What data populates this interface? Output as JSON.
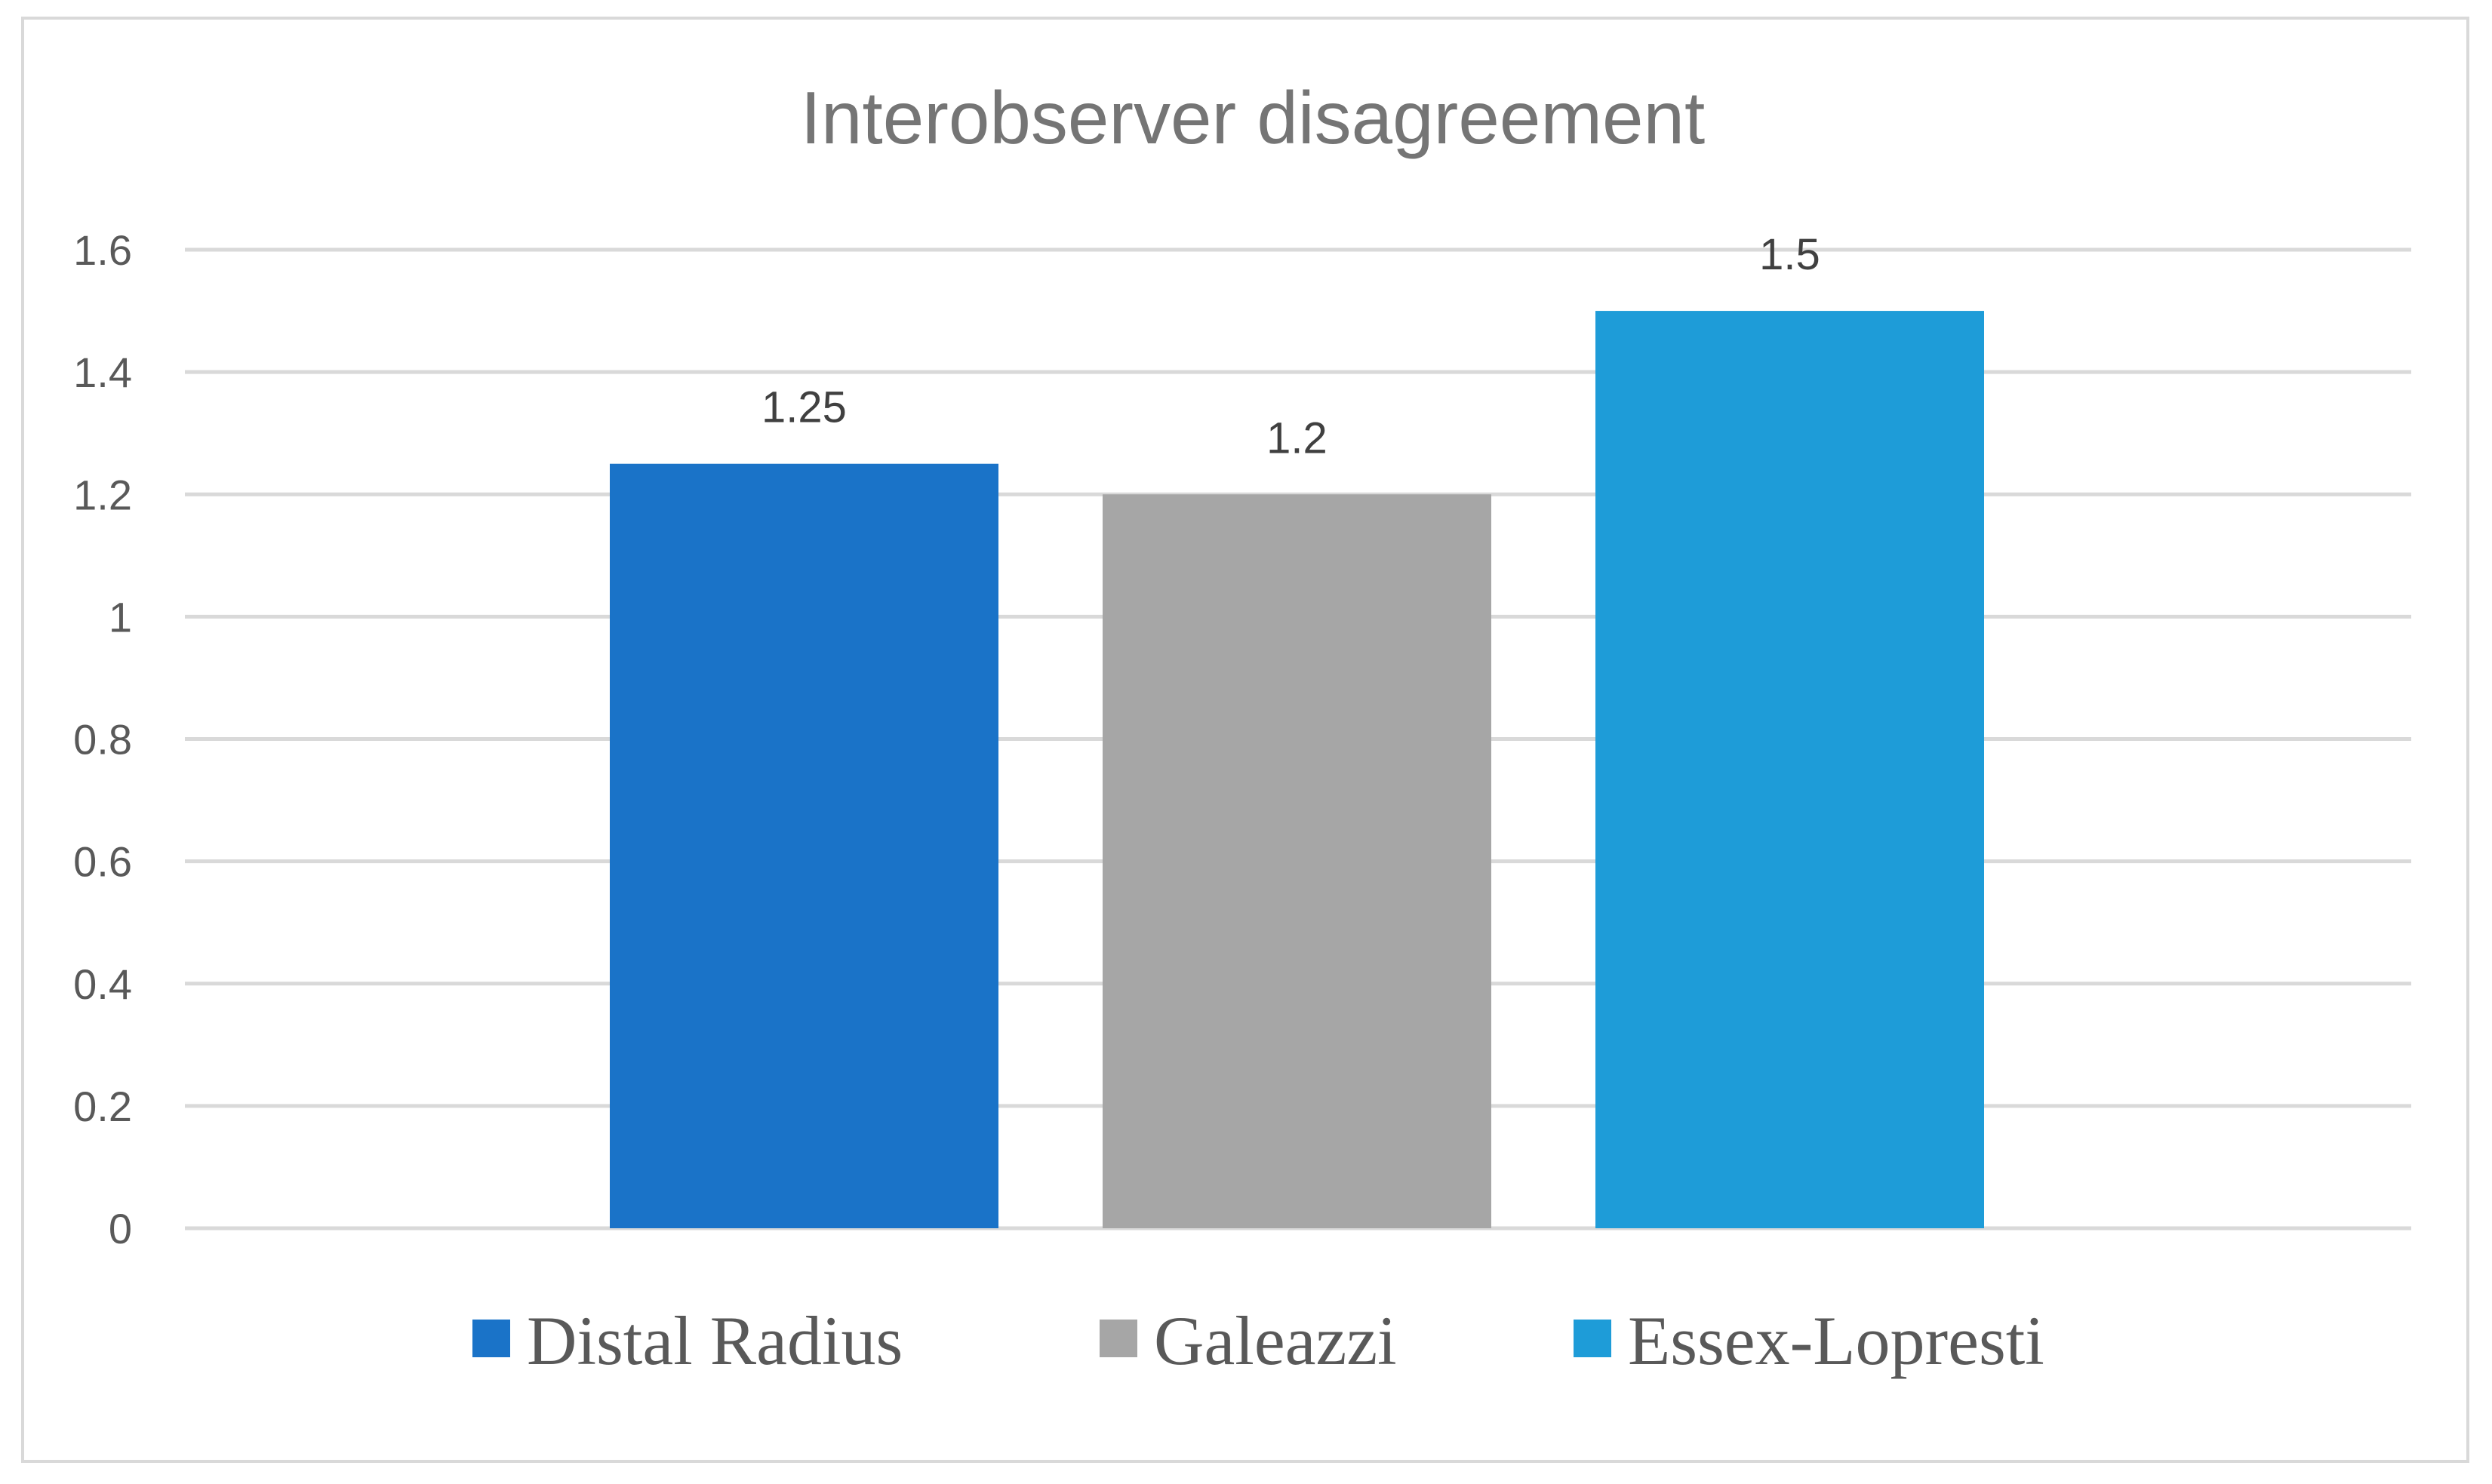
{
  "chart_data": {
    "type": "bar",
    "title": "Interobserver disagreement",
    "xlabel": "",
    "ylabel": "",
    "ylim": [
      0,
      1.6
    ],
    "yticks": [
      "0",
      "0.2",
      "0.4",
      "0.6",
      "0.8",
      "1",
      "1.2",
      "1.4",
      "1.6"
    ],
    "grid": true,
    "legend_position": "bottom",
    "data_labels": true,
    "series": [
      {
        "name": "Distal Radius",
        "value": 1.25,
        "label": "1.25",
        "color": "#1a73c8"
      },
      {
        "name": "Galeazzi",
        "value": 1.2,
        "label": "1.2",
        "color": "#a6a6a6"
      },
      {
        "name": "Essex-Lopresti",
        "value": 1.5,
        "label": "1.5",
        "color": "#1e9cd8"
      }
    ]
  }
}
